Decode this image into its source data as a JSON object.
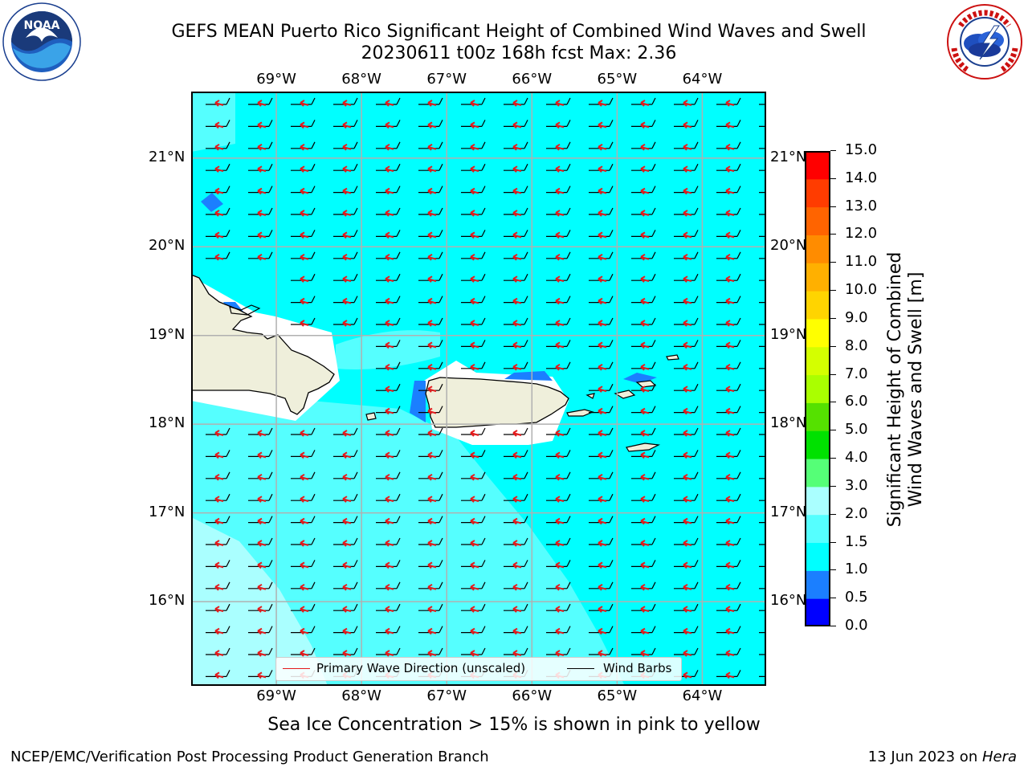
{
  "title": {
    "line1": "GEFS MEAN Puerto Rico Significant Height of Combined Wind Waves and Swell",
    "line2": "20230611 t00z 168h fcst   Max: 2.36"
  },
  "logos": {
    "left": {
      "icon": "noaa-logo",
      "text": "NOAA"
    },
    "right": {
      "icon": "nws-logo"
    }
  },
  "map": {
    "lon_ticks": [
      "69°W",
      "68°W",
      "67°W",
      "66°W",
      "65°W",
      "64°W"
    ],
    "lat_ticks": [
      "21°N",
      "20°N",
      "19°N",
      "18°N",
      "17°N",
      "16°N"
    ],
    "lon_range": [
      -70.0,
      -63.25
    ],
    "lat_range": [
      15.05,
      21.75
    ],
    "colors": {
      "land": "#efefdb",
      "grid": "#b0b0b0",
      "wave_arrow": "#e41a1c",
      "wind_barb": "#000000"
    }
  },
  "colorbar": {
    "title_line1": "Significant Height of Combined",
    "title_line2": "Wind Waves and Swell [m]",
    "labels": [
      "15.0",
      "14.0",
      "13.0",
      "12.0",
      "11.0",
      "10.0",
      "9.0",
      "8.0",
      "7.0",
      "6.0",
      "5.0",
      "4.0",
      "3.0",
      "2.0",
      "1.5",
      "1.0",
      "0.5",
      "0.0"
    ],
    "levels": [
      0.0,
      0.5,
      1.0,
      1.5,
      2.0,
      3.0,
      4.0,
      5.0,
      6.0,
      7.0,
      8.0,
      9.0,
      10.0,
      11.0,
      12.0,
      13.0,
      14.0,
      15.0
    ],
    "colors": [
      "#0000ff",
      "#1b7fff",
      "#00ffff",
      "#55ffff",
      "#aaffff",
      "#55ff77",
      "#00e100",
      "#55e100",
      "#aaff00",
      "#d4ff00",
      "#ffff00",
      "#ffd400",
      "#ffb000",
      "#ff8c00",
      "#ff6400",
      "#ff3c00",
      "#ff0000"
    ]
  },
  "legend": {
    "wave_label": "Primary Wave Direction (unscaled)",
    "barb_label": "Wind Barbs"
  },
  "note": "Sea Ice Concentration > 15% is shown in pink to yellow",
  "footer": {
    "left": "NCEP/EMC/Verification Post Processing Product Generation Branch",
    "date": "13 Jun 2023 on ",
    "machine": "Hera"
  }
}
